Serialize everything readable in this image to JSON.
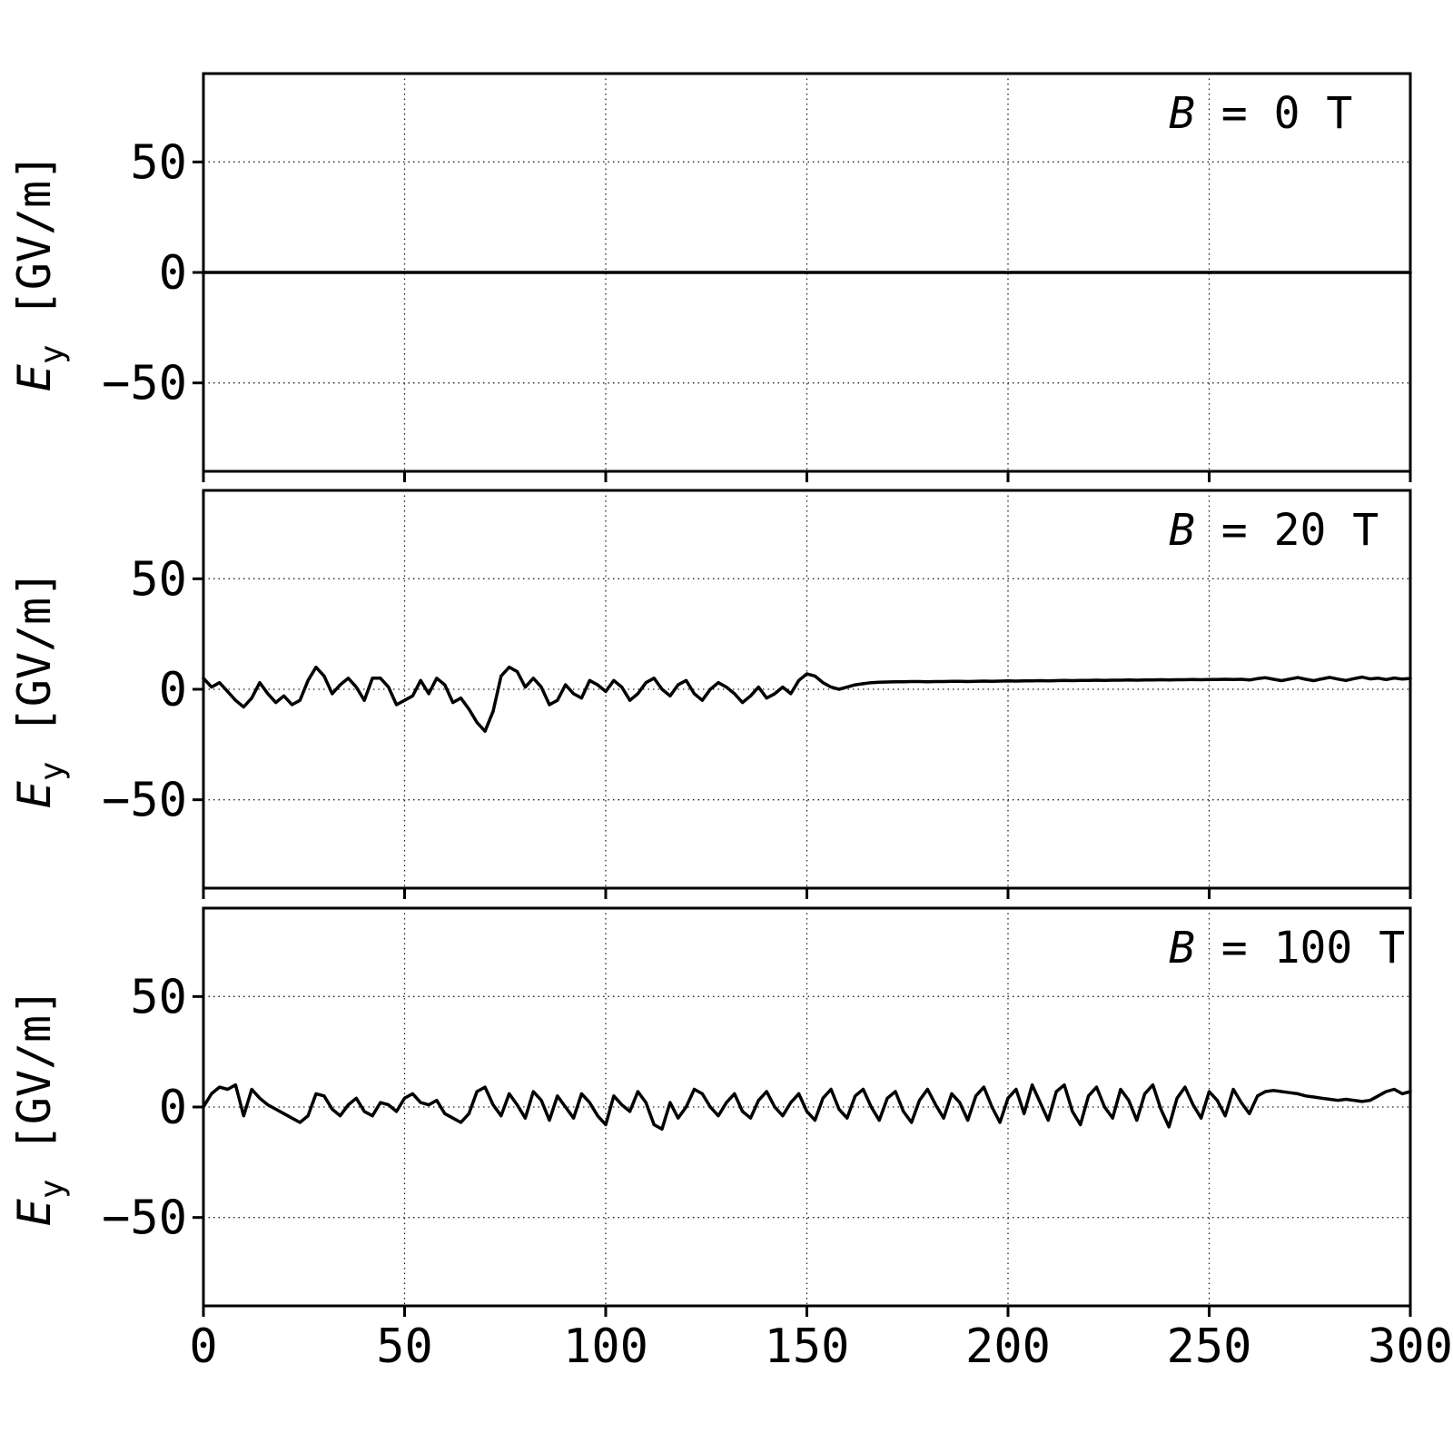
{
  "figure": {
    "background": "#ffffff",
    "line_color": "#000000",
    "grid_style": "dotted"
  },
  "chart_data": {
    "type": "line",
    "title": "",
    "xlabel": "",
    "ylabel": {
      "variable": "E",
      "subscript": "y",
      "unit": " [GV/m]"
    },
    "xlim": [
      0,
      300
    ],
    "ylim": [
      -90,
      90
    ],
    "xticks": [
      0,
      50,
      100,
      150,
      200,
      250,
      300
    ],
    "xtick_labels": [
      "0",
      "50",
      "100",
      "150",
      "200",
      "250",
      "300"
    ],
    "ygrid": [
      50,
      0,
      -50
    ],
    "ytick_labels": [
      "50",
      "0",
      "−50"
    ],
    "grid": "on-dotted",
    "legend": "none",
    "panels": [
      {
        "label_variable": "B",
        "label_rest": " = 0 T",
        "series": {
          "name": "Ey at B=0T",
          "x0": 0,
          "x_step": 300,
          "y": [
            0,
            0
          ]
        }
      },
      {
        "label_variable": "B",
        "label_rest": " = 20 T",
        "series": {
          "name": "Ey at B=20T",
          "x0": 0,
          "x_step": 2,
          "y": [
            5,
            1,
            3,
            -1,
            -5,
            -8,
            -4,
            3,
            -2,
            -6,
            -3,
            -7,
            -5,
            4,
            10,
            6,
            -2,
            2,
            5,
            1,
            -5,
            5,
            5,
            1,
            -7,
            -5,
            -3,
            4,
            -2,
            5,
            2,
            -6,
            -4,
            -9,
            -15,
            -19,
            -10,
            6,
            10,
            8,
            1,
            5,
            1,
            -7,
            -5,
            2,
            -2,
            -4,
            4,
            2,
            -1,
            4,
            1,
            -5,
            -2,
            3,
            5,
            0,
            -3,
            2,
            4,
            -2,
            -5,
            0,
            3,
            1,
            -2,
            -6,
            -3,
            1,
            -4,
            -2,
            1,
            -2,
            4,
            7,
            6,
            3,
            1,
            0,
            1,
            2,
            2.5,
            3,
            3.2,
            3.3,
            3.4,
            3.4,
            3.5,
            3.5,
            3.4,
            3.5,
            3.5,
            3.6,
            3.6,
            3.5,
            3.6,
            3.7,
            3.6,
            3.7,
            3.8,
            3.7,
            3.8,
            3.8,
            3.9,
            3.8,
            3.9,
            4,
            3.9,
            4,
            4,
            4.1,
            4,
            4.1,
            4.1,
            4.2,
            4.1,
            4.2,
            4.2,
            4.3,
            4.2,
            4.3,
            4.3,
            4.4,
            4.3,
            4.4,
            4.4,
            4.5,
            4.4,
            4.5,
            4.2,
            4.8,
            5.2,
            4.5,
            3.9,
            4.6,
            5.3,
            4.5,
            3.9,
            4.7,
            5.4,
            4.6,
            4,
            4.8,
            5.5,
            4.7,
            5,
            4.4,
            5.1,
            4.6,
            4.9
          ]
        }
      },
      {
        "label_variable": "B",
        "label_rest": " = 100 T",
        "series": {
          "name": "Ey at B=100T",
          "x0": 0,
          "x_step": 2,
          "y": [
            0,
            6,
            9,
            8,
            10,
            -4,
            8,
            4,
            1,
            -1,
            -3,
            -5,
            -7,
            -4,
            6,
            5,
            -1,
            -4,
            1,
            4,
            -2,
            -4,
            2,
            1,
            -2,
            4,
            6,
            2,
            1,
            3,
            -3,
            -5,
            -7,
            -3,
            7,
            9,
            1,
            -4,
            6,
            1,
            -5,
            7,
            3,
            -6,
            5,
            0,
            -5,
            6,
            2,
            -4,
            -8,
            5,
            1,
            -2,
            7,
            2,
            -8,
            -10,
            2,
            -5,
            0,
            8,
            6,
            0,
            -4,
            2,
            6,
            -2,
            -5,
            3,
            7,
            0,
            -4,
            2,
            6,
            -2,
            -6,
            4,
            8,
            -1,
            -5,
            5,
            8,
            0,
            -6,
            4,
            7,
            -2,
            -7,
            3,
            8,
            1,
            -5,
            6,
            2,
            -6,
            5,
            9,
            0,
            -7,
            4,
            8,
            -3,
            10,
            2,
            -6,
            7,
            10,
            -2,
            -8,
            5,
            9,
            0,
            -5,
            8,
            3,
            -6,
            6,
            10,
            -1,
            -9,
            4,
            9,
            1,
            -5,
            7,
            3,
            -4,
            8,
            2,
            -3,
            5,
            7,
            7.5,
            7,
            6.5,
            6,
            5,
            4.5,
            4,
            3.5,
            3,
            3.5,
            3,
            2.5,
            3,
            5,
            7,
            8,
            6,
            7
          ]
        }
      }
    ]
  }
}
